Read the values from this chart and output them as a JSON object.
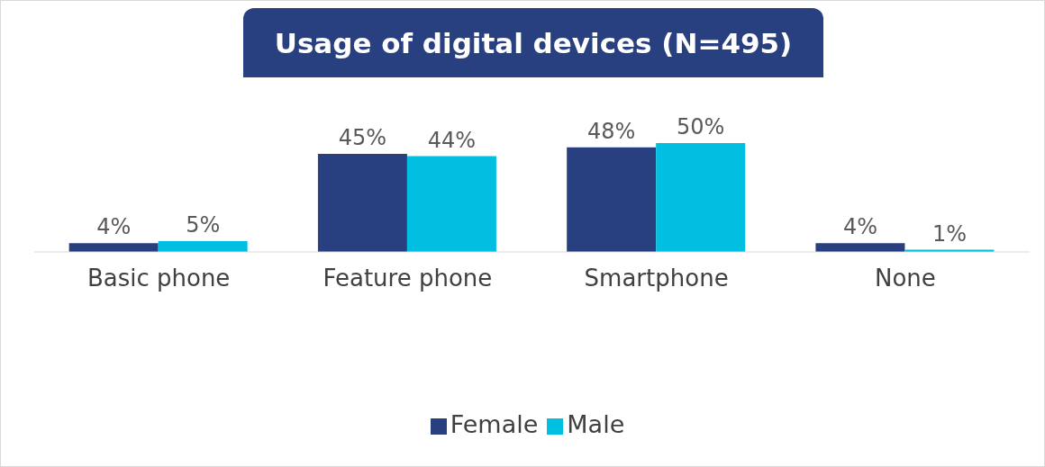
{
  "chart_data": {
    "type": "bar",
    "title": "Usage of digital devices (N=495)",
    "categories": [
      "Basic phone",
      "Feature phone",
      "Smartphone",
      "None"
    ],
    "series": [
      {
        "name": "Female",
        "color": "#283f80",
        "values": [
          4,
          45,
          48,
          4
        ],
        "value_labels": [
          "4%",
          "45%",
          "48%",
          "4%"
        ]
      },
      {
        "name": "Male",
        "color": "#00bfe0",
        "values": [
          5,
          44,
          50,
          1
        ],
        "value_labels": [
          "5%",
          "44%",
          "50%",
          "1%"
        ]
      }
    ],
    "legend": "bottom",
    "grid": false
  }
}
